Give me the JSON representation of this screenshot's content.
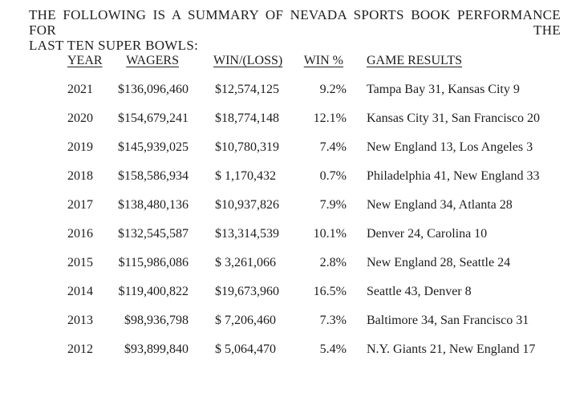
{
  "document": {
    "title_line1": "THE FOLLOWING IS A SUMMARY OF NEVADA SPORTS BOOK PERFORMANCE FOR THE",
    "title_line2": "LAST TEN SUPER BOWLS:"
  },
  "table": {
    "columns": {
      "year": "YEAR",
      "wagers": "WAGERS",
      "win_loss": "WIN/(LOSS)",
      "win_pct": "WIN %",
      "game_results": "GAME RESULTS"
    },
    "rows": [
      {
        "year": "2021",
        "wagers": "$136,096,460",
        "win_loss": "$12,574,125",
        "win_pct": "9.2%",
        "game_results": "Tampa Bay 31, Kansas City 9"
      },
      {
        "year": "2020",
        "wagers": "$154,679,241",
        "win_loss": "$18,774,148",
        "win_pct": "12.1%",
        "game_results": "Kansas City 31, San Francisco 20"
      },
      {
        "year": "2019",
        "wagers": "$145,939,025",
        "win_loss": "$10,780,319",
        "win_pct": "7.4%",
        "game_results": "New England 13, Los Angeles 3"
      },
      {
        "year": "2018",
        "wagers": "$158,586,934",
        "win_loss": "$ 1,170,432",
        "win_pct": "0.7%",
        "game_results": "Philadelphia 41, New England 33"
      },
      {
        "year": "2017",
        "wagers": "$138,480,136",
        "win_loss": "$10,937,826",
        "win_pct": "7.9%",
        "game_results": "New England 34, Atlanta 28"
      },
      {
        "year": "2016",
        "wagers": "$132,545,587",
        "win_loss": "$13,314,539",
        "win_pct": "10.1%",
        "game_results": "Denver 24, Carolina 10"
      },
      {
        "year": "2015",
        "wagers": "$115,986,086",
        "win_loss": "$ 3,261,066",
        "win_pct": "2.8%",
        "game_results": "New England 28, Seattle 24"
      },
      {
        "year": "2014",
        "wagers": "$119,400,822",
        "win_loss": "$19,673,960",
        "win_pct": "16.5%",
        "game_results": "Seattle 43, Denver 8"
      },
      {
        "year": "2013",
        "wagers": "$98,936,798",
        "win_loss": "$ 7,206,460",
        "win_pct": "7.3%",
        "game_results": "Baltimore 34, San Francisco 31"
      },
      {
        "year": "2012",
        "wagers": "$93,899,840",
        "win_loss": "$ 5,064,470",
        "win_pct": "5.4%",
        "game_results": "N.Y. Giants 21, New England 17"
      }
    ]
  },
  "colors": {
    "text": "#1d1d1d",
    "background": "#ffffff"
  }
}
